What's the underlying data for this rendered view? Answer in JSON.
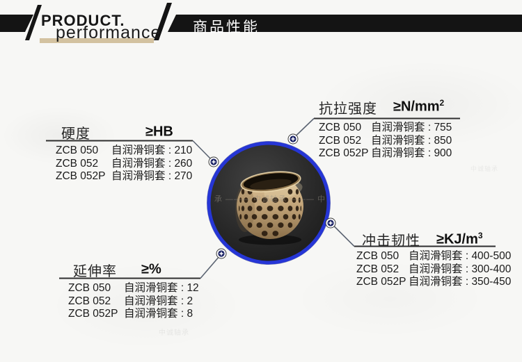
{
  "header": {
    "brand_line1": "PRODUCT.",
    "brand_line2": "performance",
    "title_cn": "商品性能"
  },
  "separator": " : ",
  "panels": [
    {
      "id": "hardness",
      "title": "硬度",
      "unit_base": "≥HB",
      "unit_sup": "",
      "rows": [
        {
          "model": "ZCB 050",
          "label": "自润滑铜套",
          "value": "210"
        },
        {
          "model": "ZCB 052",
          "label": "自润滑铜套",
          "value": "260"
        },
        {
          "model": "ZCB 052P",
          "label": "自润滑铜套",
          "value": "270"
        }
      ]
    },
    {
      "id": "tensile-strength",
      "title": "抗拉强度",
      "unit_base": "≥N/mm",
      "unit_sup": "2",
      "rows": [
        {
          "model": "ZCB 050",
          "label": "自润滑铜套",
          "value": "755"
        },
        {
          "model": "ZCB 052",
          "label": "自润滑铜套",
          "value": "850"
        },
        {
          "model": "ZCB 052P",
          "label": "自润滑铜套",
          "value": "900"
        }
      ]
    },
    {
      "id": "elongation",
      "title": "延伸率",
      "unit_base": "≥%",
      "unit_sup": "",
      "rows": [
        {
          "model": "ZCB 050",
          "label": "自润滑铜套",
          "value": "12"
        },
        {
          "model": "ZCB 052",
          "label": "自润滑铜套",
          "value": "2"
        },
        {
          "model": "ZCB 052P",
          "label": "自润滑铜套",
          "value": "8"
        }
      ]
    },
    {
      "id": "impact-toughness",
      "title": "冲击韧性",
      "unit_base": "≥KJ/m",
      "unit_sup": "3",
      "rows": [
        {
          "model": "ZCB 050",
          "label": "自润滑铜套",
          "value": "400-500"
        },
        {
          "model": "ZCB 052",
          "label": "自润滑铜套",
          "value": "300-400"
        },
        {
          "model": "ZCB 052P",
          "label": "自润滑铜套",
          "value": "350-450"
        }
      ]
    }
  ],
  "watermarks": {
    "ring": "承 ——— 中诚轴承 ——— 中",
    "page": "中诚轴承"
  },
  "colors": {
    "accent_blue": "#2636d6",
    "marker_navy": "#1d2566",
    "banner_black": "#141414",
    "tan_underline": "#d3c2a0",
    "bronze": "#c6a87c"
  }
}
